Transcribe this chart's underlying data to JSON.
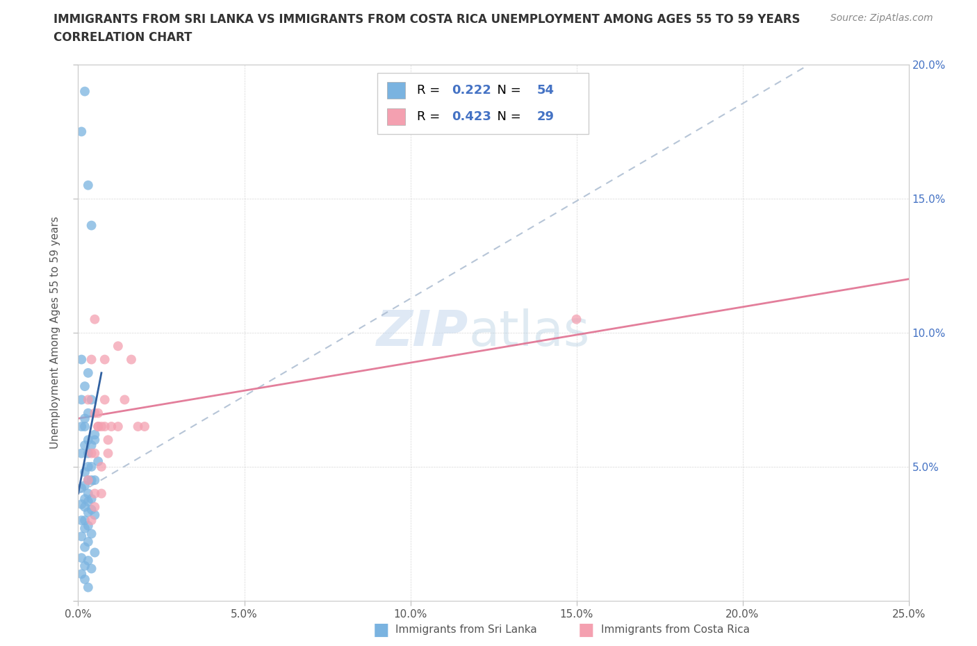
{
  "title_line1": "IMMIGRANTS FROM SRI LANKA VS IMMIGRANTS FROM COSTA RICA UNEMPLOYMENT AMONG AGES 55 TO 59 YEARS",
  "title_line2": "CORRELATION CHART",
  "source": "Source: ZipAtlas.com",
  "ylabel": "Unemployment Among Ages 55 to 59 years",
  "xlim": [
    0.0,
    0.25
  ],
  "ylim": [
    0.0,
    0.2
  ],
  "xticks": [
    0.0,
    0.05,
    0.1,
    0.15,
    0.2,
    0.25
  ],
  "yticks": [
    0.0,
    0.05,
    0.1,
    0.15,
    0.2
  ],
  "xticklabels": [
    "0.0%",
    "5.0%",
    "10.0%",
    "15.0%",
    "20.0%",
    "25.0%"
  ],
  "yticklabels_right": [
    "",
    "5.0%",
    "10.0%",
    "15.0%",
    "20.0%"
  ],
  "sri_lanka_color": "#7ab3e0",
  "costa_rica_color": "#f4a0b0",
  "sri_lanka_line_color": "#4472c4",
  "costa_rica_line_color": "#e07090",
  "sri_lanka_R": 0.222,
  "sri_lanka_N": 54,
  "costa_rica_R": 0.423,
  "costa_rica_N": 29,
  "watermark": "ZIPatlas",
  "sri_lanka_x": [
    0.002,
    0.001,
    0.003,
    0.004,
    0.002,
    0.005,
    0.001,
    0.003,
    0.002,
    0.001,
    0.004,
    0.003,
    0.002,
    0.001,
    0.005,
    0.003,
    0.004,
    0.002,
    0.003,
    0.001,
    0.006,
    0.004,
    0.003,
    0.002,
    0.005,
    0.003,
    0.004,
    0.002,
    0.001,
    0.003,
    0.002,
    0.004,
    0.003,
    0.001,
    0.002,
    0.004,
    0.003,
    0.005,
    0.002,
    0.001,
    0.003,
    0.002,
    0.004,
    0.001,
    0.003,
    0.002,
    0.005,
    0.001,
    0.003,
    0.002,
    0.004,
    0.001,
    0.002,
    0.003
  ],
  "sri_lanka_y": [
    0.19,
    0.175,
    0.155,
    0.14,
    0.065,
    0.06,
    0.09,
    0.085,
    0.08,
    0.075,
    0.075,
    0.07,
    0.068,
    0.065,
    0.062,
    0.06,
    0.058,
    0.058,
    0.055,
    0.055,
    0.052,
    0.05,
    0.05,
    0.048,
    0.045,
    0.045,
    0.045,
    0.043,
    0.042,
    0.04,
    0.038,
    0.038,
    0.037,
    0.036,
    0.035,
    0.034,
    0.033,
    0.032,
    0.03,
    0.03,
    0.028,
    0.027,
    0.025,
    0.024,
    0.022,
    0.02,
    0.018,
    0.016,
    0.015,
    0.013,
    0.012,
    0.01,
    0.008,
    0.005
  ],
  "costa_rica_x": [
    0.005,
    0.008,
    0.003,
    0.006,
    0.01,
    0.012,
    0.008,
    0.004,
    0.007,
    0.005,
    0.009,
    0.006,
    0.014,
    0.018,
    0.016,
    0.02,
    0.003,
    0.005,
    0.007,
    0.004,
    0.006,
    0.009,
    0.008,
    0.005,
    0.012,
    0.15,
    0.005,
    0.007,
    0.004
  ],
  "costa_rica_y": [
    0.105,
    0.09,
    0.075,
    0.07,
    0.065,
    0.095,
    0.075,
    0.09,
    0.065,
    0.055,
    0.06,
    0.065,
    0.075,
    0.065,
    0.09,
    0.065,
    0.045,
    0.04,
    0.05,
    0.055,
    0.065,
    0.055,
    0.065,
    0.07,
    0.065,
    0.105,
    0.035,
    0.04,
    0.03
  ],
  "sl_trendline_x": [
    0.0,
    0.22
  ],
  "sl_trendline_y": [
    0.04,
    0.2
  ],
  "cr_trendline_x": [
    0.0,
    0.25
  ],
  "cr_trendline_y": [
    0.068,
    0.12
  ]
}
